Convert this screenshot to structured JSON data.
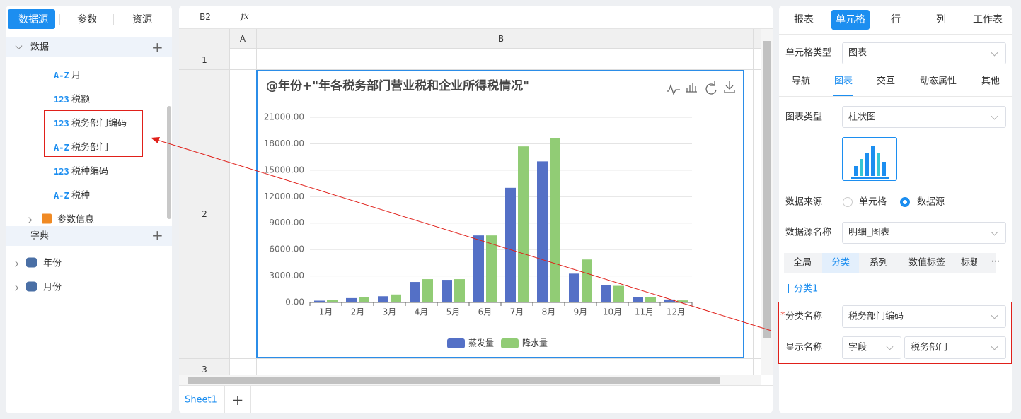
{
  "left_panel": {
    "tabs": [
      "数据源",
      "参数",
      "资源"
    ],
    "data_header": "数据",
    "fields": [
      {
        "icon": "A-Z",
        "name": "月"
      },
      {
        "icon": "123",
        "name": "税额"
      },
      {
        "icon": "123",
        "name": "税务部门编码"
      },
      {
        "icon": "A-Z",
        "name": "税务部门"
      },
      {
        "icon": "123",
        "name": "税种编码"
      },
      {
        "icon": "A-Z",
        "name": "税种"
      }
    ],
    "group": "参数信息",
    "dict_header": "字典",
    "dicts": [
      "年份",
      "月份"
    ]
  },
  "formula_bar": {
    "cell": "B2",
    "fx": "fx"
  },
  "sheet": {
    "columns": [
      "A",
      "B"
    ],
    "rows": [
      "1",
      "2",
      "3"
    ],
    "tabs": [
      "Sheet1"
    ]
  },
  "chart_data": {
    "type": "bar",
    "title": "@年份+\"年各税务部门营业税和企业所得税情况\"",
    "categories": [
      "1月",
      "2月",
      "3月",
      "4月",
      "5月",
      "6月",
      "7月",
      "8月",
      "9月",
      "10月",
      "11月",
      "12月"
    ],
    "series": [
      {
        "name": "蒸发量",
        "color": "#5470c6",
        "values": [
          200,
          490,
          700,
          2320,
          2560,
          7600,
          13000,
          16000,
          3260,
          2000,
          640,
          330
        ]
      },
      {
        "name": "降水量",
        "color": "#91cc75",
        "values": [
          260,
          590,
          900,
          2640,
          2640,
          7600,
          17700,
          18600,
          4870,
          1880,
          600,
          230
        ]
      }
    ],
    "ylim": [
      0,
      21000
    ],
    "yticks": [
      {
        "value": 0,
        "label": "0.00"
      },
      {
        "value": 3000,
        "label": "3000.00"
      },
      {
        "value": 6000,
        "label": "6000.00"
      },
      {
        "value": 9000,
        "label": "9000.00"
      },
      {
        "value": 12000,
        "label": "12000.00"
      },
      {
        "value": 15000,
        "label": "15000.00"
      },
      {
        "value": 18000,
        "label": "18000.00"
      },
      {
        "value": 21000,
        "label": "21000.00"
      }
    ],
    "grid": true,
    "legend": "bottom"
  },
  "right_panel": {
    "tabs": [
      "报表",
      "单元格",
      "行",
      "列",
      "工作表"
    ],
    "cell_type_label": "单元格类型",
    "cell_type": "图表",
    "sub_tabs": [
      "导航",
      "图表",
      "交互",
      "动态属性",
      "其他"
    ],
    "chart_type_label": "图表类型",
    "chart_type": "柱状图",
    "data_from_label": "数据来源",
    "data_from_options": [
      "单元格",
      "数据源"
    ],
    "datasource_label": "数据源名称",
    "datasource": "明细_图表",
    "config_tabs": [
      "全局",
      "分类",
      "系列",
      "数值标签",
      "标题"
    ],
    "section": "分类1",
    "category_name_label": "分类名称",
    "category_name": "税务部门编码",
    "display_name_label": "显示名称",
    "display_mode": "字段",
    "display_field": "税务部门"
  }
}
